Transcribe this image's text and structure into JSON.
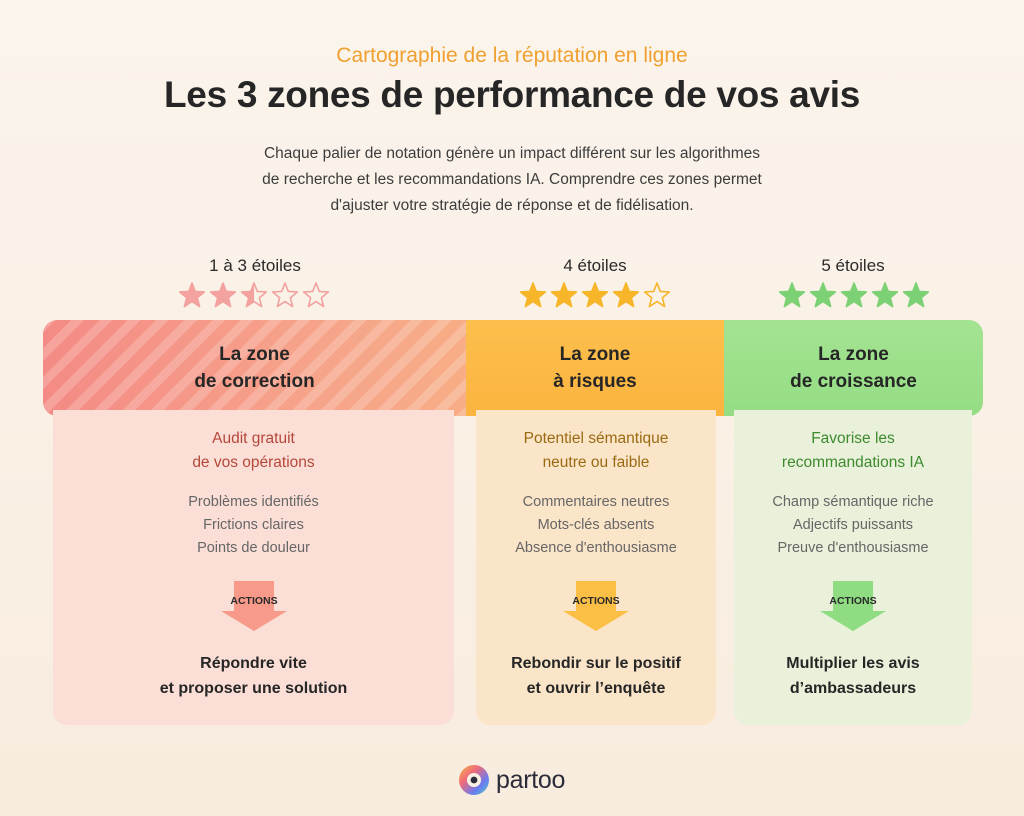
{
  "header": {
    "eyebrow": "Cartographie de la réputation en ligne",
    "title": "Les 3 zones de performance de vos avis",
    "intro_lines": [
      "Chaque palier de notation génère un impact différent sur les algorithmes",
      "de recherche et les recommandations IA. Comprendre ces zones permet",
      "d'ajuster votre stratégie de réponse et de fidélisation."
    ]
  },
  "zones": [
    {
      "rating_label": "1 à 3 étoiles",
      "stars_filled": 2,
      "stars_half": true,
      "stars_total": 5,
      "star_color": "#f3a2a0",
      "band_lines": [
        "La zone",
        "de correction"
      ],
      "sub_lines": [
        "Audit gratuit",
        "de vos opérations"
      ],
      "sub_color": "#b4473a",
      "items": [
        "Problèmes identifiés",
        "Frictions claires",
        "Points de douleur"
      ],
      "arrow_label": "ACTIONS",
      "arrow_color": "#f79a8a",
      "action_lines": [
        "Répondre vite",
        "et proposer une solution"
      ]
    },
    {
      "rating_label": "4 étoiles",
      "stars_filled": 4,
      "stars_half": false,
      "stars_total": 5,
      "star_color": "#f7b52a",
      "band_lines": [
        "La zone",
        "à risques"
      ],
      "sub_lines": [
        "Potentiel sémantique",
        "neutre ou faible"
      ],
      "sub_color": "#9a6a12",
      "items": [
        "Commentaires neutres",
        "Mots-clés absents",
        "Absence d'enthousiasme"
      ],
      "arrow_label": "ACTIONS",
      "arrow_color": "#fbbf45",
      "action_lines": [
        "Rebondir sur le positif",
        "et ouvrir l’enquête"
      ]
    },
    {
      "rating_label": "5 étoiles",
      "stars_filled": 5,
      "stars_half": false,
      "stars_total": 5,
      "star_color": "#7dd175",
      "band_lines": [
        "La zone",
        "de croissance"
      ],
      "sub_lines": [
        "Favorise les",
        "recommandations IA"
      ],
      "sub_color": "#3d8a2e",
      "items": [
        "Champ sémantique riche",
        "Adjectifs puissants",
        "Preuve d'enthousiasme"
      ],
      "arrow_label": "ACTIONS",
      "arrow_color": "#8fdc82",
      "action_lines": [
        "Multiplier les avis",
        "d’ambassadeurs"
      ]
    }
  ],
  "footer": {
    "logo_text": "partoo"
  }
}
